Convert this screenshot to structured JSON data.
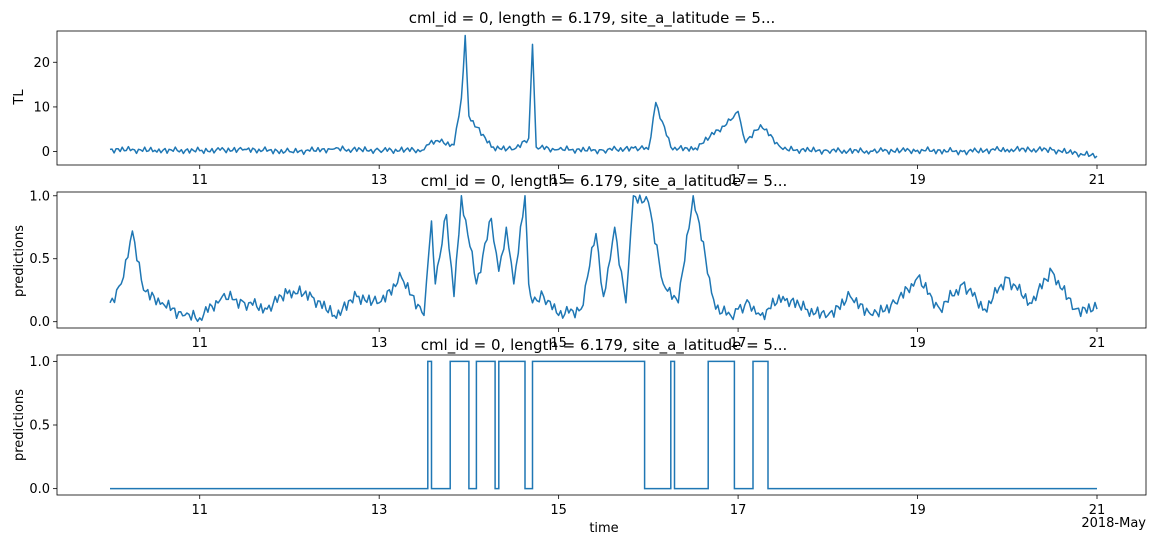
{
  "chart_data": [
    {
      "type": "line",
      "title": "cml_id = 0, length = 6.179, site_a_latitude = 5...",
      "xlabel": "",
      "ylabel": "TL",
      "xlim": [
        "2018-05-10",
        "2018-05-21"
      ],
      "ylim": [
        -3,
        27
      ],
      "x_ticks": [
        "11",
        "13",
        "15",
        "17",
        "19",
        "21"
      ],
      "y_ticks": [
        "0",
        "10",
        "20"
      ],
      "color": "#1f77b4",
      "grid": false,
      "series": [
        {
          "x": [
            "2018-05-10",
            "2018-05-10 12:00",
            "2018-05-11",
            "2018-05-11 12:00",
            "2018-05-12",
            "2018-05-12 12:00",
            "2018-05-13",
            "2018-05-13 12:00",
            "2018-05-13 14:00",
            "2018-05-13 20:00",
            "2018-05-13 22:00",
            "2018-05-13 23:00",
            "2018-05-14",
            "2018-05-14 06:00",
            "2018-05-14 12:00",
            "2018-05-14 16:00",
            "2018-05-14 17:00",
            "2018-05-14 18:00",
            "2018-05-15",
            "2018-05-15 12:00",
            "2018-05-15 20:00",
            "2018-05-16",
            "2018-05-16 02:00",
            "2018-05-16 06:00",
            "2018-05-16 12:00",
            "2018-05-16 22:00",
            "2018-05-17",
            "2018-05-17 02:00",
            "2018-05-17 06:00",
            "2018-05-17 12:00",
            "2018-05-18",
            "2018-05-18 12:00",
            "2018-05-19",
            "2018-05-19 12:00",
            "2018-05-20",
            "2018-05-20 12:00",
            "2018-05-21"
          ],
          "values": [
            0.5,
            0.3,
            0.2,
            0.5,
            0.0,
            0.6,
            0.3,
            0.4,
            2.5,
            1.5,
            12,
            26,
            8,
            1,
            0.5,
            3,
            24,
            1,
            0.5,
            0.3,
            0.8,
            0.5,
            11,
            1,
            0.4,
            7,
            9,
            2,
            6,
            0.5,
            0.2,
            0.1,
            0.3,
            0.0,
            0.5,
            0.4,
            -1
          ]
        }
      ]
    },
    {
      "type": "line",
      "title": "cml_id = 0, length = 6.179, site_a_latitude = 5...",
      "xlabel": "",
      "ylabel": "predictions",
      "xlim": [
        "2018-05-10",
        "2018-05-21"
      ],
      "ylim": [
        -0.05,
        1.03
      ],
      "x_ticks": [
        "11",
        "13",
        "15",
        "17",
        "19",
        "21"
      ],
      "y_ticks": [
        "0.0",
        "0.5",
        "1.0"
      ],
      "color": "#1f77b4",
      "grid": false,
      "series": [
        {
          "x": [
            "2018-05-10",
            "2018-05-10 03:00",
            "2018-05-10 06:00",
            "2018-05-10 09:00",
            "2018-05-10 14:00",
            "2018-05-10 20:00",
            "2018-05-11",
            "2018-05-11 06:00",
            "2018-05-11 12:00",
            "2018-05-11 18:00",
            "2018-05-12",
            "2018-05-12 06:00",
            "2018-05-12 12:00",
            "2018-05-12 18:00",
            "2018-05-13",
            "2018-05-13 06:00",
            "2018-05-13 12:00",
            "2018-05-13 14:00",
            "2018-05-13 15:00",
            "2018-05-13 18:00",
            "2018-05-13 20:00",
            "2018-05-13 22:00",
            "2018-05-14 02:00",
            "2018-05-14 06:00",
            "2018-05-14 08:00",
            "2018-05-14 10:00",
            "2018-05-14 12:00",
            "2018-05-14 15:00",
            "2018-05-14 16:00",
            "2018-05-14 17:00",
            "2018-05-14 20:00",
            "2018-05-15",
            "2018-05-15 06:00",
            "2018-05-15 10:00",
            "2018-05-15 12:00",
            "2018-05-15 15:00",
            "2018-05-15 18:00",
            "2018-05-15 20:00",
            "2018-05-16",
            "2018-05-16 04:00",
            "2018-05-16 08:00",
            "2018-05-16 12:00",
            "2018-05-16 18:00",
            "2018-05-16 22:00",
            "2018-05-17",
            "2018-05-17 03:00",
            "2018-05-17 06:00",
            "2018-05-17 12:00",
            "2018-05-17 18:00",
            "2018-05-18",
            "2018-05-18 06:00",
            "2018-05-18 12:00",
            "2018-05-18 18:00",
            "2018-05-19",
            "2018-05-19 06:00",
            "2018-05-19 12:00",
            "2018-05-19 18:00",
            "2018-05-20",
            "2018-05-20 06:00",
            "2018-05-20 12:00",
            "2018-05-20 18:00",
            "2018-05-21"
          ],
          "values": [
            0.15,
            0.3,
            0.72,
            0.25,
            0.15,
            0.05,
            0.03,
            0.2,
            0.15,
            0.1,
            0.25,
            0.2,
            0.05,
            0.2,
            0.15,
            0.35,
            0.05,
            0.8,
            0.3,
            0.85,
            0.2,
            1.0,
            0.3,
            0.82,
            0.4,
            0.75,
            0.3,
            1.0,
            0.3,
            0.15,
            0.2,
            0.05,
            0.1,
            0.7,
            0.2,
            0.75,
            0.15,
            1.0,
            0.95,
            0.3,
            0.15,
            1.0,
            0.1,
            0.05,
            0.1,
            0.15,
            0.05,
            0.2,
            0.1,
            0.05,
            0.2,
            0.05,
            0.15,
            0.35,
            0.1,
            0.3,
            0.1,
            0.35,
            0.15,
            0.4,
            0.1,
            0.1
          ]
        }
      ]
    },
    {
      "type": "line",
      "title": "cml_id = 0, length = 6.179, site_a_latitude = 5...",
      "xlabel": "time",
      "ylabel": "predictions",
      "xlim": [
        "2018-05-10",
        "2018-05-21"
      ],
      "ylim": [
        -0.05,
        1.05
      ],
      "x_ticks": [
        "11",
        "13",
        "15",
        "17",
        "19",
        "21"
      ],
      "x_offset_label": "2018-May",
      "y_ticks": [
        "0.0",
        "0.5",
        "1.0"
      ],
      "color": "#1f77b4",
      "grid": false,
      "series": [
        {
          "x": [
            "2018-05-10",
            "2018-05-13 13:00",
            "2018-05-13 13:00",
            "2018-05-13 14:00",
            "2018-05-13 14:00",
            "2018-05-13 19:00",
            "2018-05-13 19:00",
            "2018-05-14",
            "2018-05-14",
            "2018-05-14 02:00",
            "2018-05-14 02:00",
            "2018-05-14 07:00",
            "2018-05-14 07:00",
            "2018-05-14 08:00",
            "2018-05-14 08:00",
            "2018-05-14 15:00",
            "2018-05-14 15:00",
            "2018-05-14 17:00",
            "2018-05-14 17:00",
            "2018-05-15 23:00",
            "2018-05-15 23:00",
            "2018-05-16 06:00",
            "2018-05-16 06:00",
            "2018-05-16 07:00",
            "2018-05-16 07:00",
            "2018-05-16 16:00",
            "2018-05-16 16:00",
            "2018-05-16 23:00",
            "2018-05-16 23:00",
            "2018-05-17 04:00",
            "2018-05-17 04:00",
            "2018-05-17 08:00",
            "2018-05-17 08:00",
            "2018-05-21"
          ],
          "values": [
            0,
            0,
            1,
            1,
            0,
            0,
            1,
            1,
            0,
            0,
            1,
            1,
            0,
            0,
            1,
            1,
            0,
            0,
            1,
            1,
            0,
            0,
            1,
            1,
            0,
            0,
            1,
            1,
            0,
            0,
            1,
            1,
            0,
            0
          ]
        }
      ]
    }
  ]
}
